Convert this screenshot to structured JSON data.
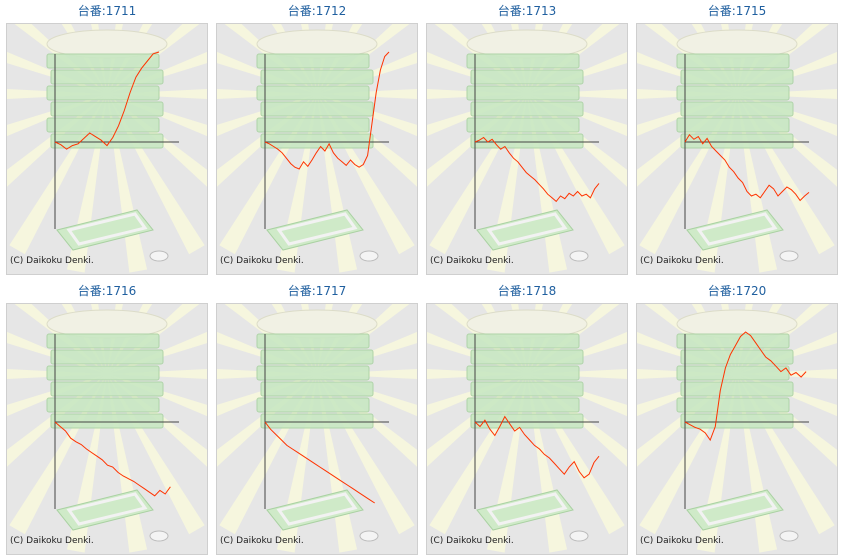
{
  "copyright": "(C) Daikoku Denki.",
  "colors": {
    "title": "#1f5f9f",
    "line": "#ff3300",
    "axis": "#444444",
    "background": "#e6e6e6"
  },
  "icons": [
    "sunburst-background",
    "stacked-medal-boxes",
    "medal-tray",
    "medal-coin"
  ],
  "machines": [
    {
      "label": "台番:1711",
      "series": [
        0,
        -0.03,
        -0.08,
        -0.04,
        -0.02,
        0.04,
        0.1,
        0.06,
        0.02,
        -0.04,
        0.05,
        0.18,
        0.35,
        0.55,
        0.72,
        0.82,
        0.9,
        0.98,
        1.0
      ]
    },
    {
      "label": "台番:1712",
      "series": [
        0,
        -0.02,
        -0.05,
        -0.08,
        -0.12,
        -0.18,
        -0.24,
        -0.28,
        -0.3,
        -0.22,
        -0.27,
        -0.2,
        -0.12,
        -0.05,
        -0.1,
        -0.02,
        -0.12,
        -0.18,
        -0.22,
        -0.26,
        -0.2,
        -0.25,
        -0.28,
        -0.25,
        -0.15,
        0.2,
        0.55,
        0.8,
        0.95,
        1.0
      ]
    },
    {
      "label": "台番:1713",
      "series": [
        0,
        0.02,
        0.05,
        0.0,
        0.03,
        -0.03,
        -0.08,
        -0.05,
        -0.12,
        -0.18,
        -0.22,
        -0.28,
        -0.34,
        -0.38,
        -0.42,
        -0.47,
        -0.52,
        -0.58,
        -0.62,
        -0.66,
        -0.6,
        -0.63,
        -0.57,
        -0.6,
        -0.55,
        -0.6,
        -0.58,
        -0.62,
        -0.52,
        -0.46
      ]
    },
    {
      "label": "台番:1715",
      "series": [
        0,
        0.08,
        0.03,
        0.06,
        -0.02,
        0.04,
        -0.05,
        -0.1,
        -0.15,
        -0.2,
        -0.28,
        -0.33,
        -0.4,
        -0.45,
        -0.55,
        -0.6,
        -0.58,
        -0.62,
        -0.55,
        -0.48,
        -0.52,
        -0.6,
        -0.55,
        -0.5,
        -0.53,
        -0.58,
        -0.65,
        -0.6,
        -0.56
      ]
    },
    {
      "label": "台番:1716",
      "series": [
        0,
        -0.05,
        -0.1,
        -0.18,
        -0.22,
        -0.25,
        -0.3,
        -0.34,
        -0.38,
        -0.42,
        -0.48,
        -0.5,
        -0.56,
        -0.6,
        -0.63,
        -0.66,
        -0.7,
        -0.74,
        -0.78,
        -0.82,
        -0.76,
        -0.8,
        -0.72
      ]
    },
    {
      "label": "台番:1717",
      "series": [
        0,
        -0.08,
        -0.14,
        -0.2,
        -0.26,
        -0.3,
        -0.34,
        -0.38,
        -0.42,
        -0.46,
        -0.5,
        -0.54,
        -0.58,
        -0.62,
        -0.66,
        -0.7,
        -0.74,
        -0.78,
        -0.82,
        -0.86,
        -0.9
      ]
    },
    {
      "label": "台番:1718",
      "series": [
        0,
        -0.05,
        0.02,
        -0.08,
        -0.15,
        -0.05,
        0.06,
        -0.02,
        -0.1,
        -0.06,
        -0.14,
        -0.2,
        -0.26,
        -0.3,
        -0.36,
        -0.4,
        -0.46,
        -0.52,
        -0.58,
        -0.5,
        -0.44,
        -0.55,
        -0.62,
        -0.58,
        -0.45,
        -0.38
      ]
    },
    {
      "label": "台番:1720",
      "series": [
        0,
        -0.03,
        -0.06,
        -0.08,
        -0.12,
        -0.2,
        -0.05,
        0.35,
        0.6,
        0.75,
        0.85,
        0.95,
        1.0,
        0.96,
        0.88,
        0.8,
        0.72,
        0.68,
        0.62,
        0.56,
        0.6,
        0.52,
        0.55,
        0.5,
        0.56
      ]
    }
  ]
}
